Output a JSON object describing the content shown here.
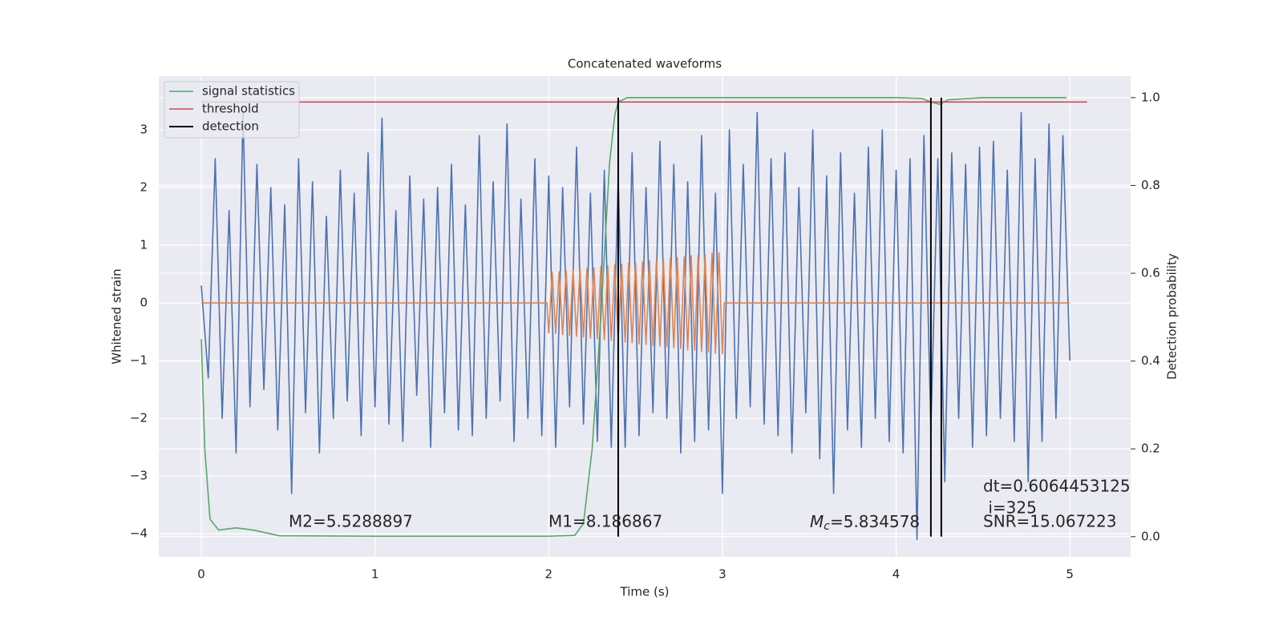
{
  "chart_data": {
    "type": "line",
    "title": "Concatenated waveforms",
    "xlabel": "Time (s)",
    "ylabel": "Whitened strain",
    "y2label": "Detection probability",
    "xlim": [
      -0.245,
      5.35
    ],
    "ylim": [
      -4.4,
      3.93
    ],
    "y2lim": [
      -0.046,
      1.049
    ],
    "xticks": [
      0,
      1,
      2,
      3,
      4,
      5
    ],
    "yticks": [
      {
        "value": -4,
        "label": "−4"
      },
      {
        "value": -3,
        "label": "−3"
      },
      {
        "value": -2,
        "label": "−2"
      },
      {
        "value": -1,
        "label": "−1"
      },
      0,
      1,
      2,
      3
    ],
    "y2ticks": [
      {
        "value": 0,
        "label": "0.0"
      },
      0.2,
      0.4,
      0.6,
      0.8,
      {
        "value": 1,
        "label": "1.0"
      }
    ],
    "grid": true,
    "legend": "upper left",
    "series": [
      {
        "color": "#4c72b0",
        "x": [
          0,
          0.04,
          0.08,
          0.12,
          0.16,
          0.2,
          0.24,
          0.28,
          0.32,
          0.36,
          0.4,
          0.44,
          0.48,
          0.52,
          0.56,
          0.6,
          0.64,
          0.68,
          0.72,
          0.76,
          0.8,
          0.84,
          0.88,
          0.92,
          0.96,
          1,
          1.04,
          1.08,
          1.12,
          1.16,
          1.2,
          1.24,
          1.28,
          1.32,
          1.36,
          1.4,
          1.44,
          1.48,
          1.52,
          1.56,
          1.6,
          1.64,
          1.68,
          1.72,
          1.76,
          1.8,
          1.84,
          1.88,
          1.92,
          1.96,
          2,
          2.04,
          2.08,
          2.12,
          2.16,
          2.2,
          2.24,
          2.28,
          2.32,
          2.36,
          2.4,
          2.44,
          2.48,
          2.52,
          2.56,
          2.6,
          2.64,
          2.68,
          2.72,
          2.76,
          2.8,
          2.84,
          2.88,
          2.92,
          2.96,
          3,
          3.04,
          3.08,
          3.12,
          3.16,
          3.2,
          3.24,
          3.28,
          3.32,
          3.36,
          3.4,
          3.44,
          3.48,
          3.52,
          3.56,
          3.6,
          3.64,
          3.68,
          3.72,
          3.76,
          3.8,
          3.84,
          3.88,
          3.92,
          3.96,
          4,
          4.04,
          4.08,
          4.12,
          4.16,
          4.2,
          4.24,
          4.28,
          4.32,
          4.36,
          4.4,
          4.44,
          4.48,
          4.52,
          4.56,
          4.6,
          4.64,
          4.68,
          4.72,
          4.76,
          4.8,
          4.84,
          4.88,
          4.92,
          4.96,
          5
        ],
        "values": [
          0.3,
          -1.3,
          2.5,
          -2.0,
          1.6,
          -2.6,
          3.3,
          -1.8,
          2.4,
          -1.5,
          2.0,
          -2.2,
          1.7,
          -3.3,
          2.5,
          -1.9,
          2.1,
          -2.6,
          1.5,
          -2.0,
          2.3,
          -1.7,
          1.9,
          -2.3,
          2.6,
          -1.8,
          3.2,
          -2.1,
          1.6,
          -2.4,
          2.2,
          -1.6,
          1.8,
          -2.5,
          2.0,
          -1.9,
          2.4,
          -2.2,
          1.7,
          -2.3,
          2.9,
          -2.0,
          2.1,
          -1.7,
          3.1,
          -2.4,
          1.8,
          -2.0,
          2.5,
          -2.3,
          2.2,
          -2.5,
          2.0,
          -1.8,
          2.7,
          -2.1,
          1.9,
          -2.4,
          2.3,
          -2.5,
          2.2,
          -2.5,
          2.6,
          -2.3,
          2.0,
          -1.9,
          2.8,
          -2.0,
          2.4,
          -2.6,
          2.1,
          -2.4,
          2.9,
          -2.2,
          1.9,
          -3.3,
          3.0,
          -2.0,
          2.4,
          -1.8,
          3.3,
          -2.1,
          2.5,
          -2.3,
          2.6,
          -2.6,
          2.0,
          -1.9,
          3.0,
          -2.7,
          2.2,
          -3.3,
          2.6,
          -2.2,
          1.9,
          -2.5,
          2.7,
          -2.0,
          3.0,
          -2.4,
          2.3,
          -2.6,
          2.5,
          -4.1,
          2.9,
          -2.2,
          2.5,
          -3.1,
          2.6,
          -2.0,
          2.4,
          -2.5,
          2.7,
          -2.3,
          2.8,
          -2.0,
          2.3,
          -2.4,
          3.3,
          -3.1,
          2.5,
          -2.4,
          3.1,
          -2.0,
          2.9,
          -1.0
        ]
      },
      {
        "color": "#dd8452",
        "x": [
          0,
          1.99,
          2,
          2.02,
          2.04,
          2.06,
          2.08,
          2.1,
          2.12,
          2.14,
          2.16,
          2.18,
          2.2,
          2.22,
          2.24,
          2.26,
          2.28,
          2.3,
          2.32,
          2.34,
          2.36,
          2.38,
          2.4,
          2.42,
          2.44,
          2.46,
          2.48,
          2.5,
          2.52,
          2.54,
          2.56,
          2.58,
          2.6,
          2.62,
          2.64,
          2.66,
          2.68,
          2.7,
          2.72,
          2.74,
          2.76,
          2.78,
          2.8,
          2.82,
          2.84,
          2.86,
          2.88,
          2.9,
          2.92,
          2.94,
          2.96,
          2.98,
          3,
          3.01,
          5
        ],
        "values": [
          0,
          0,
          -0.52,
          0.53,
          -0.53,
          0.54,
          -0.55,
          0.56,
          -0.56,
          0.57,
          -0.58,
          0.58,
          -0.59,
          0.6,
          -0.61,
          0.61,
          -0.62,
          0.63,
          -0.64,
          0.64,
          -0.65,
          0.66,
          -0.66,
          0.67,
          -0.68,
          0.69,
          -0.69,
          0.7,
          -0.71,
          0.71,
          -0.72,
          0.73,
          -0.74,
          0.74,
          -0.75,
          0.76,
          -0.76,
          0.77,
          -0.78,
          0.79,
          -0.79,
          0.8,
          -0.81,
          0.82,
          -0.82,
          0.83,
          -0.84,
          0.84,
          -0.85,
          0.86,
          -0.87,
          0.87,
          -0.88,
          0,
          0
        ]
      },
      {
        "name": "signal statistics",
        "color": "#55a868",
        "axis": "y2",
        "x": [
          0,
          0.02,
          0.05,
          0.1,
          0.2,
          0.3,
          0.45,
          1,
          2,
          2.15,
          2.2,
          2.25,
          2.3,
          2.35,
          2.38,
          2.4,
          2.45,
          2.5,
          3,
          4,
          4.15,
          4.2,
          4.25,
          4.3,
          4.5,
          4.98
        ],
        "values": [
          0.45,
          0.2,
          0.04,
          0.015,
          0.02,
          0.015,
          0.002,
          0.001,
          0.001,
          0.003,
          0.03,
          0.2,
          0.5,
          0.85,
          0.96,
          0.99,
          1.0,
          1.0,
          1.0,
          1.0,
          0.998,
          0.99,
          0.985,
          0.995,
          1.0,
          1.0
        ]
      },
      {
        "name": "threshold",
        "color": "#c44e52",
        "axis": "y2",
        "x": [
          0,
          5.1
        ],
        "values": [
          0.99,
          0.99
        ]
      }
    ],
    "detections": {
      "name": "detection",
      "color": "#000000",
      "x": [
        2.4,
        4.2,
        4.26
      ]
    },
    "annotations": {
      "m2": "M2=5.5288897",
      "m1": "M1=8.186867",
      "mc": {
        "symbol": "M",
        "subscript": "c",
        "text": "=5.834578"
      },
      "stats": [
        "dt=0.6064453125",
        " i=325",
        "SNR=15.067223"
      ]
    }
  }
}
